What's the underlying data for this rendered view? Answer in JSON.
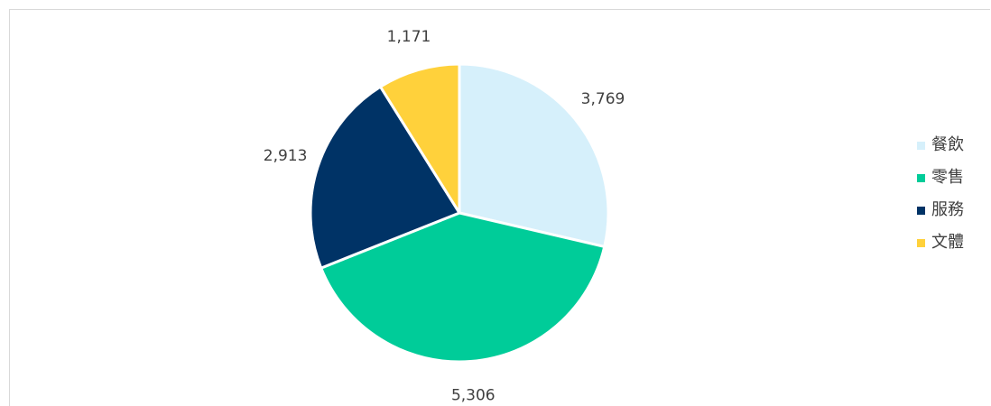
{
  "chart_data": {
    "type": "pie",
    "categories": [
      "餐飲",
      "零售",
      "服務",
      "文體"
    ],
    "values": [
      3769,
      5306,
      2913,
      1171
    ],
    "value_labels": [
      "3,769",
      "5,306",
      "2,913",
      "1,171"
    ],
    "colors": [
      "#d6f0fb",
      "#00cc99",
      "#003366",
      "#ffd13b"
    ],
    "title": "",
    "legend_position": "right",
    "start_angle": "12 o'clock",
    "direction": "clockwise"
  }
}
